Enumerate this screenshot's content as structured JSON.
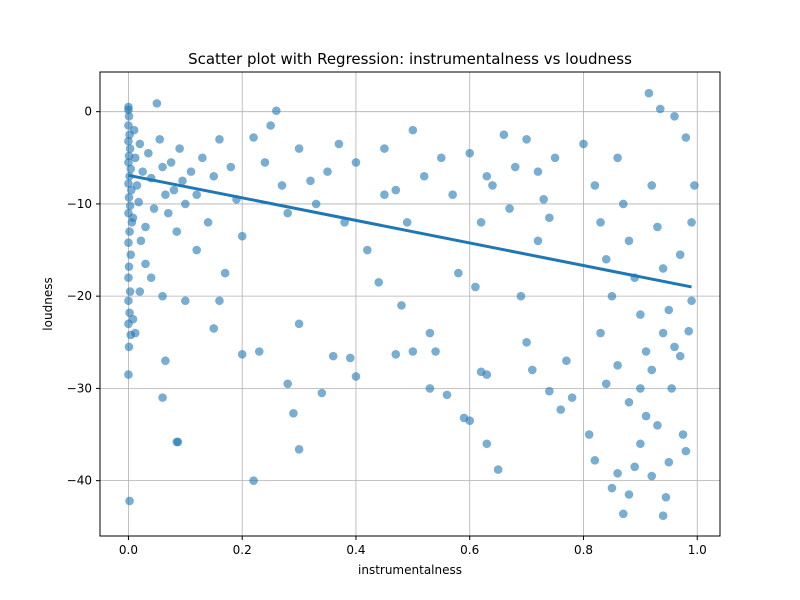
{
  "chart_data": {
    "type": "scatter",
    "title": "Scatter plot with Regression: instrumentalness vs loudness",
    "xlabel": "instrumentalness",
    "ylabel": "loudness",
    "xlim": [
      -0.05,
      1.04
    ],
    "ylim": [
      -46,
      4.3
    ],
    "xticks": [
      0.0,
      0.2,
      0.4,
      0.6,
      0.8,
      1.0
    ],
    "xtick_labels": [
      "0.0",
      "0.2",
      "0.4",
      "0.6",
      "0.8",
      "1.0"
    ],
    "yticks": [
      -40,
      -30,
      -20,
      -10,
      0
    ],
    "ytick_labels": [
      "−40",
      "−30",
      "−20",
      "−10",
      "0"
    ],
    "grid": true,
    "color": "#1f77b4",
    "regression": {
      "x": [
        0.0,
        0.99
      ],
      "y": [
        -6.9,
        -19.0
      ]
    },
    "series": [
      {
        "points": [
          [
            0.0,
            0.5
          ],
          [
            0.0,
            0.2
          ],
          [
            0.001,
            -0.5
          ],
          [
            0.0,
            -1.5
          ],
          [
            0.002,
            -2.5
          ],
          [
            0.0,
            -3.2
          ],
          [
            0.003,
            -4.0
          ],
          [
            0.001,
            -4.8
          ],
          [
            0.0,
            -5.5
          ],
          [
            0.004,
            -6.2
          ],
          [
            0.002,
            -7.0
          ],
          [
            0.0,
            -7.8
          ],
          [
            0.005,
            -8.5
          ],
          [
            0.001,
            -9.3
          ],
          [
            0.003,
            -10.2
          ],
          [
            0.0,
            -11.0
          ],
          [
            0.006,
            -12.0
          ],
          [
            0.002,
            -13.0
          ],
          [
            0.0,
            -14.2
          ],
          [
            0.004,
            -15.5
          ],
          [
            0.001,
            -16.8
          ],
          [
            0.0,
            -18.0
          ],
          [
            0.003,
            -19.5
          ],
          [
            0.0,
            -20.5
          ],
          [
            0.002,
            -21.8
          ],
          [
            0.0,
            -23.0
          ],
          [
            0.004,
            -24.2
          ],
          [
            0.001,
            -25.5
          ],
          [
            0.0,
            -28.5
          ],
          [
            0.002,
            -42.2
          ],
          [
            0.01,
            -2.0
          ],
          [
            0.012,
            -5.0
          ],
          [
            0.015,
            -8.0
          ],
          [
            0.008,
            -11.5
          ],
          [
            0.02,
            -3.5
          ],
          [
            0.025,
            -6.5
          ],
          [
            0.018,
            -9.8
          ],
          [
            0.03,
            -12.5
          ],
          [
            0.022,
            -14.0
          ],
          [
            0.035,
            -4.5
          ],
          [
            0.04,
            -7.2
          ],
          [
            0.045,
            -10.5
          ],
          [
            0.05,
            0.9
          ],
          [
            0.055,
            -3.0
          ],
          [
            0.06,
            -6.0
          ],
          [
            0.065,
            -9.0
          ],
          [
            0.07,
            -11.0
          ],
          [
            0.075,
            -5.5
          ],
          [
            0.08,
            -8.5
          ],
          [
            0.085,
            -13.0
          ],
          [
            0.09,
            -4.0
          ],
          [
            0.095,
            -7.5
          ],
          [
            0.1,
            -10.0
          ],
          [
            0.11,
            -6.5
          ],
          [
            0.12,
            -9.0
          ],
          [
            0.13,
            -5.0
          ],
          [
            0.14,
            -12.0
          ],
          [
            0.15,
            -7.0
          ],
          [
            0.008,
            -22.5
          ],
          [
            0.012,
            -24.0
          ],
          [
            0.02,
            -19.5
          ],
          [
            0.03,
            -16.5
          ],
          [
            0.04,
            -18.0
          ],
          [
            0.06,
            -20.0
          ],
          [
            0.065,
            -27.0
          ],
          [
            0.06,
            -31.0
          ],
          [
            0.085,
            -35.8
          ],
          [
            0.087,
            -35.8
          ],
          [
            0.1,
            -20.5
          ],
          [
            0.12,
            -15.0
          ],
          [
            0.15,
            -23.5
          ],
          [
            0.16,
            -20.5
          ],
          [
            0.17,
            -17.5
          ],
          [
            0.2,
            -26.3
          ],
          [
            0.2,
            -13.5
          ],
          [
            0.22,
            -2.8
          ],
          [
            0.25,
            -1.5
          ],
          [
            0.23,
            -26.0
          ],
          [
            0.22,
            -40.0
          ],
          [
            0.28,
            -29.5
          ],
          [
            0.29,
            -32.7
          ],
          [
            0.3,
            -23.0
          ],
          [
            0.3,
            -36.6
          ],
          [
            0.26,
            0.1
          ],
          [
            0.27,
            -8.0
          ],
          [
            0.3,
            -4.0
          ],
          [
            0.33,
            -10.0
          ],
          [
            0.35,
            -6.5
          ],
          [
            0.34,
            -30.5
          ],
          [
            0.36,
            -26.5
          ],
          [
            0.38,
            -12.0
          ],
          [
            0.4,
            -5.5
          ],
          [
            0.39,
            -26.7
          ],
          [
            0.4,
            -28.7
          ],
          [
            0.42,
            -15.0
          ],
          [
            0.44,
            -18.5
          ],
          [
            0.45,
            -9.0
          ],
          [
            0.47,
            -26.3
          ],
          [
            0.48,
            -21.0
          ],
          [
            0.5,
            -26.0
          ],
          [
            0.5,
            -2.0
          ],
          [
            0.52,
            -7.0
          ],
          [
            0.53,
            -24.0
          ],
          [
            0.54,
            -26.0
          ],
          [
            0.53,
            -30.0
          ],
          [
            0.56,
            -30.7
          ],
          [
            0.58,
            -17.5
          ],
          [
            0.59,
            -33.2
          ],
          [
            0.6,
            -33.5
          ],
          [
            0.61,
            -19.0
          ],
          [
            0.62,
            -12.0
          ],
          [
            0.62,
            -28.2
          ],
          [
            0.63,
            -28.5
          ],
          [
            0.63,
            -36.0
          ],
          [
            0.65,
            -38.8
          ],
          [
            0.64,
            -8.0
          ],
          [
            0.66,
            -2.5
          ],
          [
            0.68,
            -6.0
          ],
          [
            0.69,
            -20.0
          ],
          [
            0.7,
            -25.0
          ],
          [
            0.71,
            -28.0
          ],
          [
            0.72,
            -14.0
          ],
          [
            0.73,
            -9.5
          ],
          [
            0.74,
            -30.3
          ],
          [
            0.75,
            -5.0
          ],
          [
            0.76,
            -32.3
          ],
          [
            0.77,
            -27.0
          ],
          [
            0.78,
            -31.0
          ],
          [
            0.8,
            -3.5
          ],
          [
            0.81,
            -35.0
          ],
          [
            0.82,
            -37.8
          ],
          [
            0.83,
            -24.0
          ],
          [
            0.84,
            -29.5
          ],
          [
            0.85,
            -40.8
          ],
          [
            0.86,
            -39.2
          ],
          [
            0.87,
            -43.6
          ],
          [
            0.88,
            -41.5
          ],
          [
            0.89,
            -38.5
          ],
          [
            0.9,
            -36.0
          ],
          [
            0.91,
            -33.0
          ],
          [
            0.915,
            2.0
          ],
          [
            0.92,
            -39.5
          ],
          [
            0.93,
            -34.0
          ],
          [
            0.935,
            0.3
          ],
          [
            0.94,
            -43.8
          ],
          [
            0.945,
            -41.8
          ],
          [
            0.95,
            -38.0
          ],
          [
            0.955,
            -30.0
          ],
          [
            0.96,
            -0.5
          ],
          [
            0.97,
            -26.5
          ],
          [
            0.975,
            -35.0
          ],
          [
            0.98,
            -36.8
          ],
          [
            0.985,
            -23.8
          ],
          [
            0.99,
            -20.5
          ],
          [
            0.995,
            -8.0
          ],
          [
            0.99,
            -12.0
          ],
          [
            0.98,
            -2.8
          ],
          [
            0.97,
            -15.5
          ],
          [
            0.82,
            -8.0
          ],
          [
            0.83,
            -12.0
          ],
          [
            0.84,
            -16.0
          ],
          [
            0.85,
            -20.0
          ],
          [
            0.86,
            -5.0
          ],
          [
            0.87,
            -10.0
          ],
          [
            0.88,
            -14.0
          ],
          [
            0.89,
            -18.0
          ],
          [
            0.9,
            -22.0
          ],
          [
            0.91,
            -26.0
          ],
          [
            0.92,
            -8.0
          ],
          [
            0.93,
            -12.5
          ],
          [
            0.94,
            -17.0
          ],
          [
            0.95,
            -21.5
          ],
          [
            0.96,
            -25.5
          ],
          [
            0.9,
            -30.0
          ],
          [
            0.92,
            -28.0
          ],
          [
            0.94,
            -24.0
          ],
          [
            0.86,
            -27.5
          ],
          [
            0.88,
            -31.5
          ],
          [
            0.55,
            -5.0
          ],
          [
            0.57,
            -9.0
          ],
          [
            0.6,
            -4.5
          ],
          [
            0.63,
            -7.0
          ],
          [
            0.67,
            -10.5
          ],
          [
            0.7,
            -3.0
          ],
          [
            0.72,
            -6.5
          ],
          [
            0.74,
            -11.5
          ],
          [
            0.45,
            -4.0
          ],
          [
            0.47,
            -8.5
          ],
          [
            0.49,
            -12.0
          ],
          [
            0.37,
            -3.5
          ],
          [
            0.32,
            -7.5
          ],
          [
            0.28,
            -11.0
          ],
          [
            0.24,
            -5.5
          ],
          [
            0.19,
            -9.5
          ],
          [
            0.16,
            -3.0
          ],
          [
            0.18,
            -6.0
          ]
        ]
      }
    ]
  }
}
